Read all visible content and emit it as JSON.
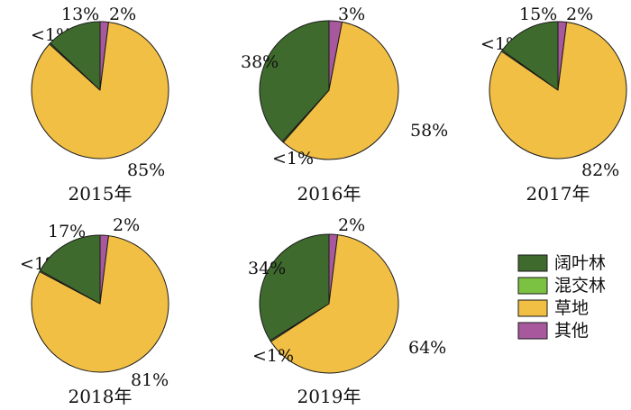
{
  "colors": {
    "broadleaf": "#3f6a2d",
    "mixed": "#7cc242",
    "grassland": "#f2bf45",
    "other": "#a8599e",
    "stroke": "#1a1a1a"
  },
  "legend": {
    "entries": [
      {
        "key": "broadleaf",
        "label": "阔叶林"
      },
      {
        "key": "mixed",
        "label": "混交林"
      },
      {
        "key": "grassland",
        "label": "草地"
      },
      {
        "key": "other",
        "label": "其他"
      }
    ]
  },
  "chart_data": [
    {
      "type": "pie",
      "title": "2015年",
      "slices": [
        {
          "key": "other",
          "value": 2,
          "label": "2%"
        },
        {
          "key": "grassland",
          "value": 85,
          "label": "85%"
        },
        {
          "key": "mixed",
          "value": 0.3,
          "label": "<1%"
        },
        {
          "key": "broadleaf",
          "value": 13,
          "label": "13%"
        }
      ]
    },
    {
      "type": "pie",
      "title": "2016年",
      "slices": [
        {
          "key": "other",
          "value": 3,
          "label": "3%"
        },
        {
          "key": "grassland",
          "value": 58,
          "label": "58%"
        },
        {
          "key": "mixed",
          "value": 0.3,
          "label": "<1%"
        },
        {
          "key": "broadleaf",
          "value": 38,
          "label": "38%"
        }
      ]
    },
    {
      "type": "pie",
      "title": "2017年",
      "slices": [
        {
          "key": "other",
          "value": 2,
          "label": "2%"
        },
        {
          "key": "grassland",
          "value": 82,
          "label": "82%"
        },
        {
          "key": "mixed",
          "value": 0.3,
          "label": "<1%"
        },
        {
          "key": "broadleaf",
          "value": 15,
          "label": "15%"
        }
      ]
    },
    {
      "type": "pie",
      "title": "2018年",
      "slices": [
        {
          "key": "other",
          "value": 2,
          "label": "2%"
        },
        {
          "key": "grassland",
          "value": 81,
          "label": "81%"
        },
        {
          "key": "mixed",
          "value": 0.3,
          "label": "<1%"
        },
        {
          "key": "broadleaf",
          "value": 17,
          "label": "17%"
        }
      ]
    },
    {
      "type": "pie",
      "title": "2019年",
      "slices": [
        {
          "key": "other",
          "value": 2,
          "label": "2%"
        },
        {
          "key": "grassland",
          "value": 64,
          "label": "64%"
        },
        {
          "key": "mixed",
          "value": 0.3,
          "label": "<1%"
        },
        {
          "key": "broadleaf",
          "value": 34,
          "label": "34%"
        }
      ]
    }
  ]
}
